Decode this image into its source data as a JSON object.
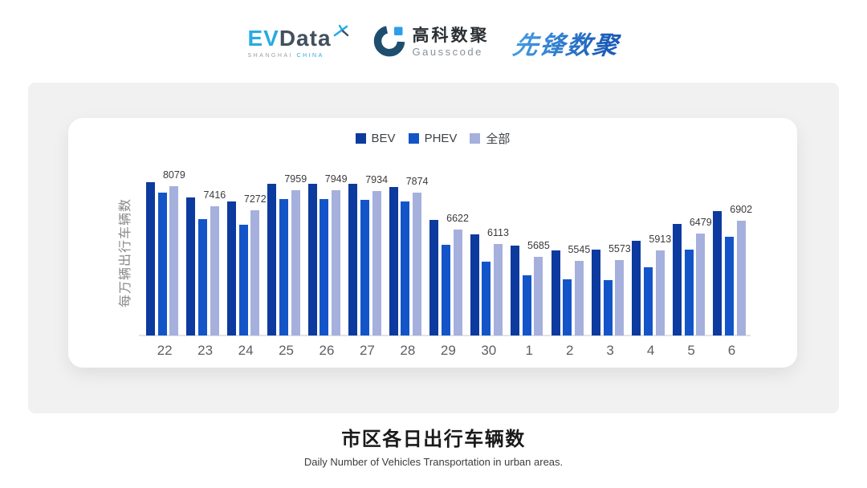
{
  "header": {
    "evdata_logo": {
      "ev": "EV",
      "data": "Data",
      "sub_location": "SHANGHAI ",
      "sub_country": "CHINA"
    },
    "gausscode_logo": {
      "cn": "高科数聚",
      "en": "Gausscode"
    },
    "pioneer_logo": {
      "text": "先锋数聚"
    }
  },
  "chart_data": {
    "type": "bar",
    "title": "市区各日出行车辆数",
    "subtitle": "Daily Number of Vehicles Transportation in urban areas.",
    "ylabel": "每万辆出行车辆数",
    "xlabel": "",
    "categories": [
      "22",
      "23",
      "24",
      "25",
      "26",
      "27",
      "28",
      "29",
      "30",
      "1",
      "2",
      "3",
      "4",
      "5",
      "6"
    ],
    "series": [
      {
        "name": "BEV",
        "color": "#0c3a9e",
        "values": [
          8240,
          7700,
          7580,
          8180,
          8160,
          8170,
          8070,
          6940,
          6440,
          6060,
          5910,
          5940,
          6240,
          6790,
          7240
        ],
        "values_estimated_from_pixels": true
      },
      {
        "name": "PHEV",
        "color": "#1355c9",
        "values": [
          7870,
          6980,
          6780,
          7660,
          7640,
          7620,
          7580,
          6100,
          5510,
          5040,
          4920,
          4900,
          5330,
          5930,
          6370
        ],
        "values_estimated_from_pixels": true
      },
      {
        "name": "全部",
        "color": "#a6b0dd",
        "values": [
          8079,
          7416,
          7272,
          7959,
          7949,
          7934,
          7874,
          6622,
          6113,
          5685,
          5545,
          5573,
          5913,
          6479,
          6902
        ],
        "data_labels_shown": true
      }
    ],
    "label_series_index": 2,
    "ylim": [
      3000,
      8500
    ],
    "grid": false,
    "legend_position": "top-center",
    "axis_line_color": "#e3e3e5"
  },
  "footer": {
    "title": "市区各日出行车辆数",
    "subtitle": "Daily Number of Vehicles Transportation in urban areas."
  },
  "colors": {
    "bev": "#0c3a9e",
    "phev": "#1355c9",
    "all": "#a6b0dd",
    "panel_bg": "#f1f1f2",
    "card_bg": "#ffffff",
    "logo_cyan": "#29abe2",
    "logo_slate": "#41505c",
    "gauss_dark": "#1d4e6e",
    "gauss_bright": "#2d9fe8",
    "pioneer_blue": "#2878cc"
  }
}
